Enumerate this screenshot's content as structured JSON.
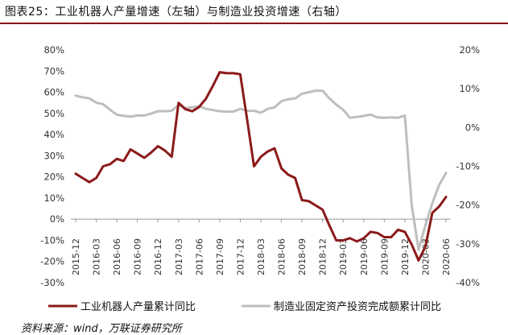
{
  "title": "图表25：工业机器人产量增速（左轴）与制造业投资增速（右轴）",
  "source": "资料来源：wind，万联证券研究所",
  "chart_data": {
    "type": "line",
    "x": [
      "2015-12",
      "2016-01",
      "2016-02",
      "2016-03",
      "2016-04",
      "2016-05",
      "2016-06",
      "2016-07",
      "2016-08",
      "2016-09",
      "2016-10",
      "2016-11",
      "2016-12",
      "2017-01",
      "2017-02",
      "2017-03",
      "2017-04",
      "2017-05",
      "2017-06",
      "2017-07",
      "2017-08",
      "2017-09",
      "2017-10",
      "2017-11",
      "2017-12",
      "2018-01",
      "2018-02",
      "2018-03",
      "2018-04",
      "2018-05",
      "2018-06",
      "2018-07",
      "2018-08",
      "2018-09",
      "2018-10",
      "2018-11",
      "2018-12",
      "2019-01",
      "2019-02",
      "2019-03",
      "2019-04",
      "2019-05",
      "2019-06",
      "2019-07",
      "2019-08",
      "2019-09",
      "2019-10",
      "2019-11",
      "2019-12",
      "2020-01",
      "2020-02",
      "2020-03",
      "2020-04",
      "2020-05",
      "2020-06"
    ],
    "x_tick_labels": [
      "2015-12",
      "2016-03",
      "2016-06",
      "2016-09",
      "2016-12",
      "2017-03",
      "2017-06",
      "2017-09",
      "2017-12",
      "2018-03",
      "2018-06",
      "2018-09",
      "2018-12",
      "2019-03",
      "2019-06",
      "2019-09",
      "2019-12",
      "2020-03",
      "2020-06"
    ],
    "left_axis": {
      "ylim": [
        -30,
        80
      ],
      "ticks": [
        "80%",
        "70%",
        "60%",
        "50%",
        "40%",
        "30%",
        "20%",
        "10%",
        "0%",
        "-10%",
        "-20%",
        "-30%"
      ]
    },
    "right_axis": {
      "ylim": [
        -40,
        20
      ],
      "ticks": [
        "20%",
        "10%",
        "0%",
        "-10%",
        "-20%",
        "-30%",
        "-40%"
      ]
    },
    "series": [
      {
        "name": "工业机器人产量累计同比",
        "axis": "left",
        "color": "#8b1a1a",
        "values": [
          21.5,
          19.5,
          17.5,
          19.5,
          25,
          26,
          28.5,
          27.5,
          33,
          31,
          29,
          31.5,
          34.5,
          32.5,
          29.5,
          55,
          52,
          51,
          53,
          57,
          63,
          69.5,
          69,
          69,
          68.5,
          47,
          25,
          29.5,
          32,
          33.5,
          24,
          21,
          19.5,
          9,
          8.5,
          6.5,
          4.5,
          -3,
          -10,
          -10,
          -9,
          -10.5,
          -9,
          -6,
          -6.5,
          -8.5,
          -8.5,
          -5,
          -6,
          -12,
          -19.5,
          -13,
          3,
          6,
          10.5
        ]
      },
      {
        "name": "制造业固定资产投资完成额累计同比",
        "axis": "right",
        "color": "#bebebe",
        "values": [
          8.2,
          7.8,
          7.5,
          6.4,
          6,
          4.6,
          3.3,
          3,
          2.8,
          3.1,
          3.1,
          3.6,
          4.2,
          4.2,
          4.3,
          5.8,
          5,
          5.2,
          5.5,
          4.8,
          4.5,
          4.2,
          4.1,
          4.1,
          4.8,
          4.3,
          4.3,
          3.8,
          4.8,
          5.2,
          6.8,
          7.3,
          7.5,
          8.7,
          9.1,
          9.5,
          9.5,
          7.5,
          5.9,
          4.6,
          2.5,
          2.7,
          3,
          3.3,
          2.6,
          2.5,
          2.6,
          2.5,
          3.1,
          -20,
          -31.5,
          -25.2,
          -19.5,
          -14.8,
          -11.7
        ]
      }
    ],
    "grid": false,
    "legend": "bottom"
  }
}
